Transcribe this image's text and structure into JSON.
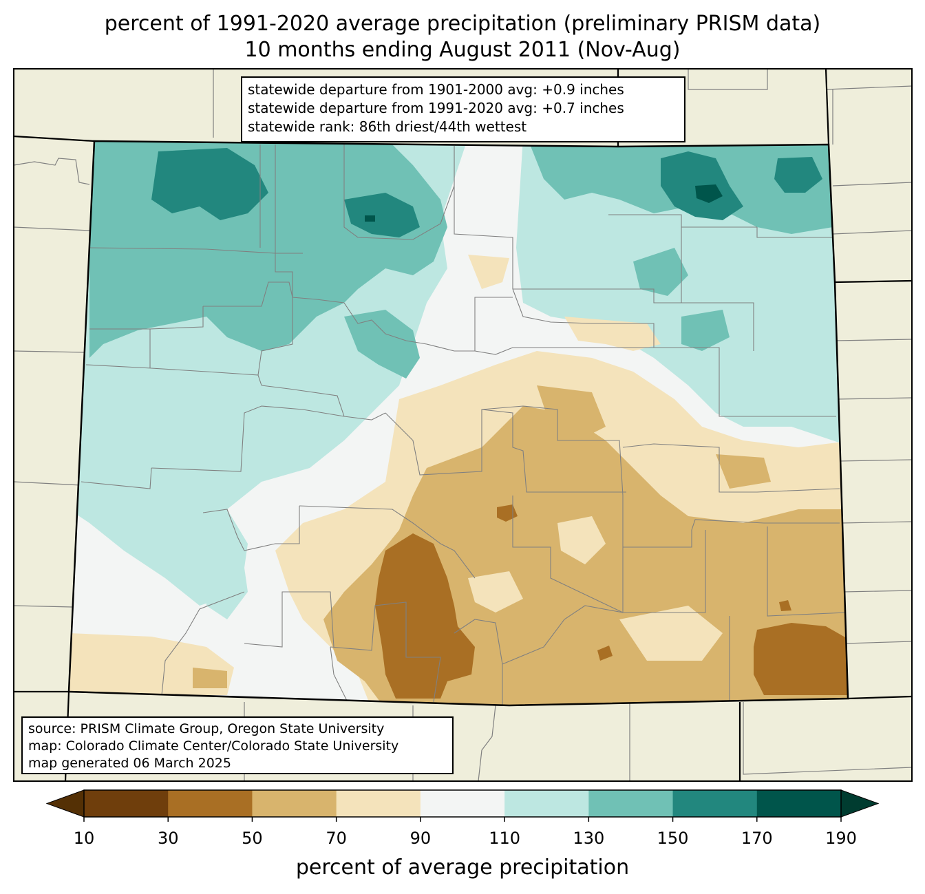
{
  "title": {
    "line1": "percent of 1991-2020 average precipitation (preliminary PRISM data)",
    "line2": "10 months ending August 2011 (Nov-Aug)"
  },
  "stats": {
    "line1": "statewide departure from 1901-2000 avg: +0.9 inches",
    "line2": "statewide departure from 1991-2020 avg: +0.7 inches",
    "line3": "statewide rank: 86th driest/44th wettest"
  },
  "source": {
    "line1": "source: PRISM Climate Group, Oregon State University",
    "line2": "map: Colorado Climate Center/Colorado State University",
    "line3": "map generated 06 March 2025"
  },
  "colorbar": {
    "label": "percent of average precipitation",
    "ticks": [
      "10",
      "30",
      "50",
      "70",
      "90",
      "110",
      "130",
      "150",
      "170",
      "190"
    ],
    "under_color": "#543005",
    "over_color": "#003c30",
    "colors": [
      "#6f3e0c",
      "#a96f24",
      "#d8b46d",
      "#f4e3bb",
      "#f3f5f4",
      "#bde7e1",
      "#70c1b5",
      "#22877e",
      "#00554b"
    ]
  },
  "colors": {
    "background_land": "#efeedb",
    "state_border": "#000000",
    "county_border": "#808080"
  }
}
